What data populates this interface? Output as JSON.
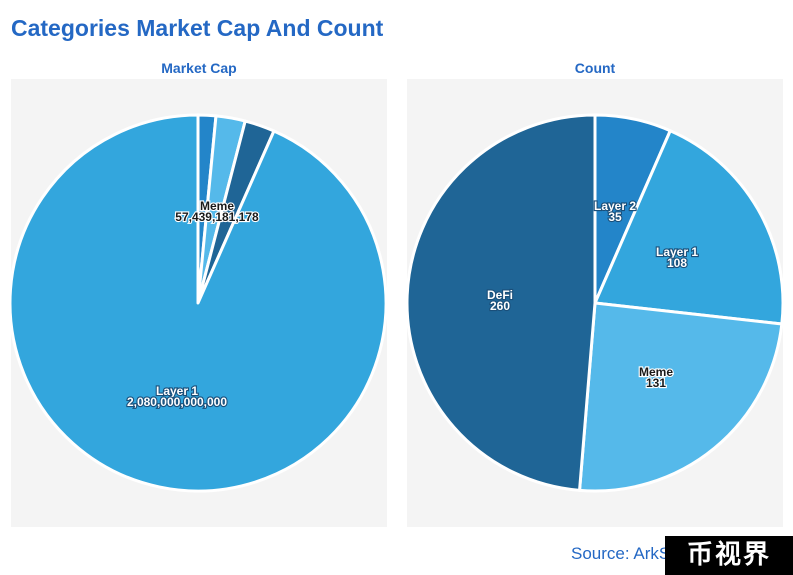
{
  "page_title": "Categories Market Cap And Count",
  "source": "Source: ArkS",
  "watermark": "币视界",
  "chart_data": [
    {
      "type": "pie",
      "title": "Market Cap",
      "categories": [
        "Layer 2",
        "DeFi",
        "Meme",
        "Layer 1"
      ],
      "values": [
        34000000000,
        56000000000,
        57439181178,
        2080000000000
      ],
      "colors": [
        "#2385c9",
        "#55b9ea",
        "#1f6596",
        "#33a6dd"
      ],
      "labels": [
        {
          "category": "Meme",
          "text_name": "Meme",
          "text_value": "57,439,181,178"
        },
        {
          "category": "Layer 1",
          "text_name": "Layer 1",
          "text_value": "2,080,000,000,000"
        }
      ]
    },
    {
      "type": "pie",
      "title": "Count",
      "categories": [
        "Layer 2",
        "Layer 1",
        "Meme",
        "DeFi"
      ],
      "values": [
        35,
        108,
        131,
        260
      ],
      "colors": [
        "#2385c9",
        "#33a6dd",
        "#55b9ea",
        "#1f6596"
      ],
      "labels": [
        {
          "category": "Layer 2",
          "text_name": "Layer 2",
          "text_value": "35"
        },
        {
          "category": "Layer 1",
          "text_name": "Layer 1",
          "text_value": "108"
        },
        {
          "category": "Meme",
          "text_name": "Meme",
          "text_value": "131"
        },
        {
          "category": "DeFi",
          "text_name": "DeFi",
          "text_value": "260"
        }
      ]
    }
  ]
}
